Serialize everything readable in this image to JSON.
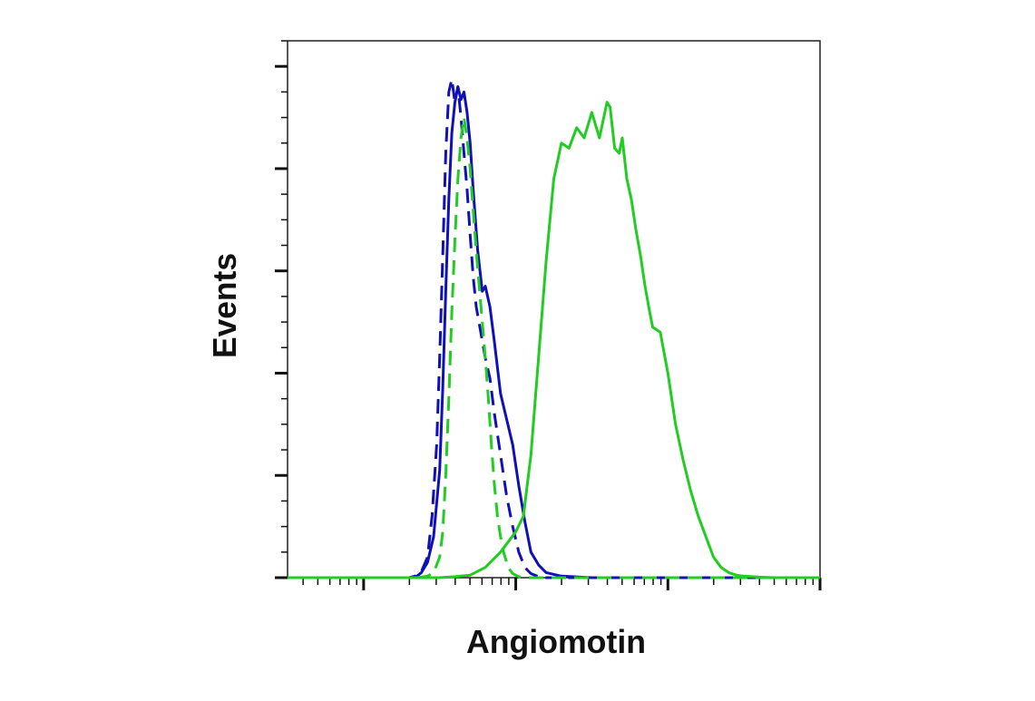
{
  "chart_data": {
    "type": "line",
    "title": "",
    "xlabel": "Angiomotin",
    "ylabel": "Events",
    "x_scale": "log",
    "xlim": [
      0,
      3.5
    ],
    "ylim": [
      0,
      1.05
    ],
    "x_major_ticks": [
      0.5,
      1.5,
      2.5,
      3.5
    ],
    "y_major_ticks": [
      0,
      0.2,
      0.4,
      0.6,
      0.8,
      1.0
    ],
    "grid": false,
    "legend": "none",
    "series": [
      {
        "color": "#1010b8",
        "dash": "solid",
        "x": [
          0.6,
          0.65,
          0.7,
          0.75,
          0.8,
          0.85,
          0.88,
          0.92,
          0.96,
          1.0,
          1.02,
          1.04,
          1.06,
          1.08,
          1.1,
          1.12,
          1.14,
          1.16,
          1.18,
          1.2,
          1.22,
          1.25,
          1.28,
          1.3,
          1.33,
          1.36,
          1.4,
          1.44,
          1.48,
          1.52,
          1.56,
          1.6,
          1.65,
          1.7,
          1.8,
          2.0,
          2.2,
          2.5,
          3.0,
          3.5
        ],
        "y": [
          0,
          0,
          0,
          0,
          0,
          0.003,
          0.01,
          0.03,
          0.08,
          0.21,
          0.37,
          0.56,
          0.74,
          0.87,
          0.93,
          0.96,
          0.935,
          0.95,
          0.91,
          0.85,
          0.76,
          0.64,
          0.56,
          0.57,
          0.53,
          0.46,
          0.36,
          0.31,
          0.26,
          0.18,
          0.11,
          0.05,
          0.025,
          0.01,
          0.003,
          0,
          0,
          0,
          0,
          0
        ]
      },
      {
        "color": "#1010b8",
        "dash": "dashed",
        "x": [
          0.6,
          0.7,
          0.8,
          0.85,
          0.88,
          0.92,
          0.95,
          0.98,
          1.0,
          1.02,
          1.04,
          1.06,
          1.08,
          1.1,
          1.12,
          1.14,
          1.16,
          1.18,
          1.2,
          1.22,
          1.24,
          1.27,
          1.3,
          1.33,
          1.36,
          1.4,
          1.44,
          1.48,
          1.52,
          1.56,
          1.6,
          1.65,
          1.7,
          1.8,
          2.0,
          2.5,
          3.0,
          3.5
        ],
        "y": [
          0,
          0,
          0,
          0.004,
          0.012,
          0.04,
          0.12,
          0.26,
          0.43,
          0.63,
          0.83,
          0.95,
          0.975,
          0.93,
          0.96,
          0.9,
          0.83,
          0.76,
          0.67,
          0.59,
          0.53,
          0.48,
          0.43,
          0.39,
          0.32,
          0.24,
          0.16,
          0.1,
          0.05,
          0.02,
          0.008,
          0.002,
          0,
          0,
          0,
          0,
          0,
          0
        ]
      },
      {
        "color": "#22cc22",
        "dash": "dashed",
        "x": [
          0.7,
          0.85,
          0.92,
          0.96,
          1.0,
          1.02,
          1.04,
          1.06,
          1.08,
          1.1,
          1.12,
          1.14,
          1.16,
          1.18,
          1.2,
          1.22,
          1.24,
          1.26,
          1.28,
          1.3,
          1.32,
          1.34,
          1.36,
          1.38,
          1.4,
          1.42,
          1.45,
          1.48,
          1.52,
          1.56,
          1.6,
          1.7,
          1.8,
          2.0,
          2.5,
          3.0,
          3.5
        ],
        "y": [
          0,
          0,
          0.003,
          0.01,
          0.04,
          0.09,
          0.2,
          0.35,
          0.52,
          0.66,
          0.78,
          0.86,
          0.9,
          0.86,
          0.8,
          0.72,
          0.64,
          0.57,
          0.5,
          0.43,
          0.35,
          0.26,
          0.18,
          0.12,
          0.08,
          0.05,
          0.02,
          0.008,
          0.002,
          0,
          0,
          0,
          0,
          0,
          0,
          0,
          0
        ]
      },
      {
        "color": "#22cc22",
        "dash": "solid",
        "x": [
          0,
          0.5,
          0.8,
          1.0,
          1.1,
          1.2,
          1.3,
          1.4,
          1.5,
          1.55,
          1.6,
          1.65,
          1.7,
          1.75,
          1.8,
          1.85,
          1.9,
          1.95,
          2.0,
          2.05,
          2.1,
          2.12,
          2.15,
          2.18,
          2.2,
          2.23,
          2.26,
          2.29,
          2.32,
          2.35,
          2.38,
          2.4,
          2.45,
          2.5,
          2.55,
          2.6,
          2.65,
          2.7,
          2.75,
          2.8,
          2.85,
          2.9,
          2.95,
          3.0,
          3.1,
          3.2,
          3.5
        ],
        "y": [
          0,
          0,
          0,
          0,
          0.002,
          0.005,
          0.02,
          0.05,
          0.09,
          0.12,
          0.24,
          0.43,
          0.62,
          0.78,
          0.85,
          0.84,
          0.88,
          0.86,
          0.91,
          0.86,
          0.93,
          0.92,
          0.84,
          0.83,
          0.86,
          0.78,
          0.74,
          0.68,
          0.63,
          0.57,
          0.52,
          0.49,
          0.48,
          0.4,
          0.3,
          0.23,
          0.17,
          0.12,
          0.08,
          0.04,
          0.02,
          0.01,
          0.005,
          0.003,
          0.001,
          0,
          0
        ]
      }
    ]
  }
}
